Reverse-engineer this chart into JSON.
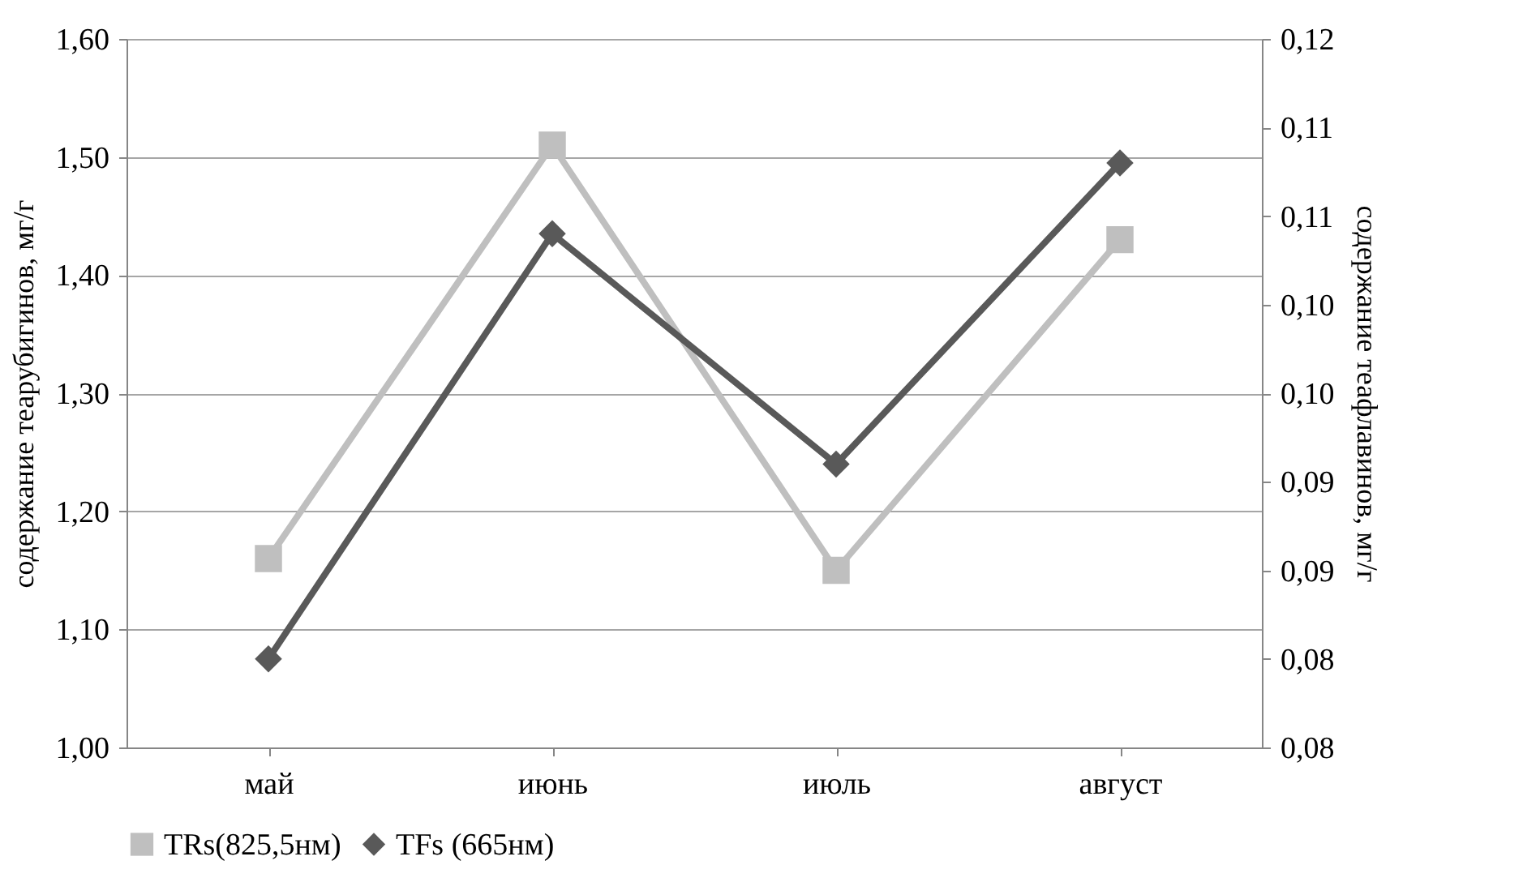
{
  "chart_data": {
    "type": "line",
    "categories": [
      "май",
      "июнь",
      "июль",
      "август"
    ],
    "ylabel": "содержание теарубигинов, мг/г",
    "y2label": "содержание теафлавинов, мг/г",
    "series": [
      {
        "name": "TRs(825,5нм)",
        "color": "#bfbfbf",
        "marker": "square",
        "values": [
          1.16,
          1.51,
          1.15,
          1.43
        ]
      },
      {
        "name": "TFs (665нм)",
        "color": "#595959",
        "marker": "diamond",
        "axis": "y2",
        "values": [
          0.08,
          0.104,
          0.091,
          0.108
        ]
      }
    ],
    "ylim": [
      1.0,
      1.6
    ],
    "yticks": [
      {
        "value": 1.0,
        "label": "1,00"
      },
      {
        "value": 1.1,
        "label": "1,10"
      },
      {
        "value": 1.2,
        "label": "1,20"
      },
      {
        "value": 1.3,
        "label": "1,30"
      },
      {
        "value": 1.4,
        "label": "1,40"
      },
      {
        "value": 1.5,
        "label": "1,50"
      },
      {
        "value": 1.6,
        "label": "1,60"
      }
    ],
    "y2lim": [
      0.075,
      0.115
    ],
    "y2ticks": [
      {
        "value": 0.075,
        "label": "0,08"
      },
      {
        "value": 0.08,
        "label": "0,08"
      },
      {
        "value": 0.085,
        "label": "0,09"
      },
      {
        "value": 0.09,
        "label": "0,09"
      },
      {
        "value": 0.095,
        "label": "0,10"
      },
      {
        "value": 0.1,
        "label": "0,10"
      },
      {
        "value": 0.105,
        "label": "0,11"
      },
      {
        "value": 0.11,
        "label": "0,11"
      },
      {
        "value": 0.115,
        "label": "0,12"
      }
    ],
    "grid": "y",
    "legend": "bottom",
    "line_style": "solid"
  }
}
